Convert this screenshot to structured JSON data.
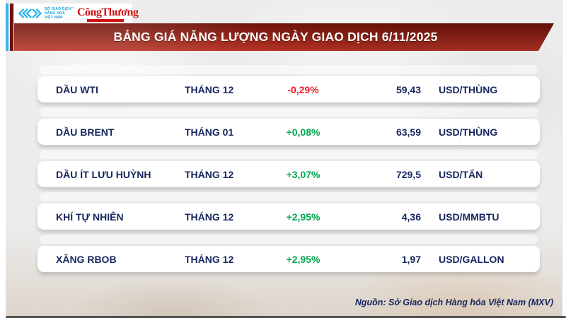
{
  "header": {
    "mxv_logo": {
      "lines": [
        "SỞ GIAO DỊCH",
        "HÀNG HÓA",
        "VIỆT NAM"
      ],
      "tm": "™"
    },
    "congthuong_logo": "CôngThương",
    "title": "BẢNG GIÁ NĂNG LƯỢNG NGÀY GIAO DỊCH 6/11/2025"
  },
  "table": {
    "rows": [
      {
        "name": "DẦU WTI",
        "month": "THÁNG 12",
        "change": "-0,29%",
        "direction": "down",
        "price": "59,43",
        "unit": "USD/THÙNG"
      },
      {
        "name": "DẦU BRENT",
        "month": "THÁNG 01",
        "change": "+0,08%",
        "direction": "up",
        "price": "63,59",
        "unit": "USD/THÙNG"
      },
      {
        "name": "DẦU ÍT LƯU HUỲNH",
        "month": "THÁNG 12",
        "change": "+3,07%",
        "direction": "up",
        "price": "729,5",
        "unit": "USD/TẤN"
      },
      {
        "name": "KHÍ TỰ NHIÊN",
        "month": "THÁNG 12",
        "change": "+2,95%",
        "direction": "up",
        "price": "4,36",
        "unit": "USD/MMBTU"
      },
      {
        "name": "XĂNG RBOB",
        "month": "THÁNG 12",
        "change": "+2,95%",
        "direction": "up",
        "price": "1,97",
        "unit": "USD/GALLON"
      }
    ]
  },
  "footer": {
    "source": "Nguồn: Sở Giao dịch Hàng hóa Việt Nam (MXV)"
  },
  "colors": {
    "up": "#00a651",
    "down": "#ed1c24",
    "navy": "#16265e",
    "banner_red": "#b73325",
    "accent_cyan": "#35b6e9"
  },
  "chart_data": {
    "type": "table",
    "title": "BẢNG GIÁ NĂNG LƯỢNG NGÀY GIAO DỊCH 6/11/2025",
    "rows": [
      {
        "name": "DẦU WTI",
        "month": "THÁNG 12",
        "change_pct": -0.29,
        "price": 59.43,
        "unit": "USD/THÙNG"
      },
      {
        "name": "DẦU BRENT",
        "month": "THÁNG 01",
        "change_pct": 0.08,
        "price": 63.59,
        "unit": "USD/THÙNG"
      },
      {
        "name": "DẦU ÍT LƯU HUỲNH",
        "month": "THÁNG 12",
        "change_pct": 3.07,
        "price": 729.5,
        "unit": "USD/TẤN"
      },
      {
        "name": "KHÍ TỰ NHIÊN",
        "month": "THÁNG 12",
        "change_pct": 2.95,
        "price": 4.36,
        "unit": "USD/MMBTU"
      },
      {
        "name": "XĂNG RBOB",
        "month": "THÁNG 12",
        "change_pct": 2.95,
        "price": 1.97,
        "unit": "USD/GALLON"
      }
    ],
    "source": "Nguồn: Sở Giao dịch Hàng hóa Việt Nam (MXV)"
  }
}
